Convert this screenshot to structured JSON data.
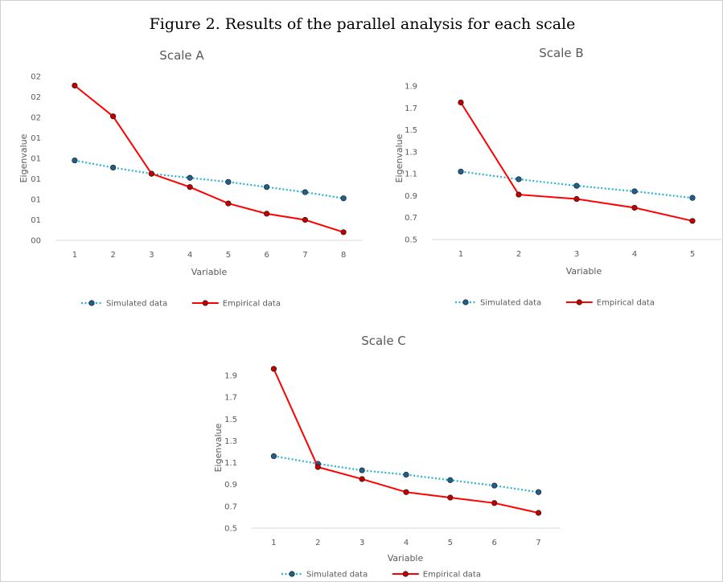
{
  "figure_title": "Figure 2. Results of the parallel analysis for each scale",
  "colors": {
    "simulated": "#2bb0d6",
    "simulated_marker": "#1f5f8b",
    "empirical": "#ff0000",
    "empirical_marker": "#c00000"
  },
  "chart_data": [
    {
      "type": "line",
      "title": "Scale A",
      "xlabel": "Variable",
      "ylabel": "Eigenvalue",
      "x": [
        1,
        2,
        3,
        4,
        5,
        6,
        7,
        8
      ],
      "ylim": [
        0,
        8
      ],
      "y_tick_labels": [
        "00",
        "01",
        "01",
        "01",
        "01",
        "01",
        "02",
        "02",
        "02"
      ],
      "series": [
        {
          "name": "Simulated data",
          "style": "dotted",
          "values": [
            3.9,
            3.55,
            3.25,
            3.05,
            2.85,
            2.6,
            2.35,
            2.05
          ]
        },
        {
          "name": "Empirical data",
          "style": "solid",
          "values": [
            7.55,
            6.05,
            3.25,
            2.6,
            1.8,
            1.3,
            1.0,
            0.4
          ]
        }
      ],
      "legend": "bottom"
    },
    {
      "type": "line",
      "title": "Scale B",
      "xlabel": "Variable",
      "ylabel": "Eigenvalue",
      "x": [
        1,
        2,
        3,
        4,
        5
      ],
      "ylim": [
        0.5,
        1.9
      ],
      "y_tick_labels": [
        "0.5",
        "0.7",
        "0.9",
        "1.1",
        "1.3",
        "1.5",
        "1.7",
        "1.9"
      ],
      "series": [
        {
          "name": "Simulated data",
          "style": "dotted",
          "values": [
            1.12,
            1.05,
            0.99,
            0.94,
            0.88
          ]
        },
        {
          "name": "Empirical data",
          "style": "solid",
          "values": [
            1.75,
            0.91,
            0.87,
            0.79,
            0.67
          ]
        }
      ],
      "legend": "bottom"
    },
    {
      "type": "line",
      "title": "Scale C",
      "xlabel": "Variable",
      "ylabel": "Eigenvalue",
      "x": [
        1,
        2,
        3,
        4,
        5,
        6,
        7
      ],
      "ylim": [
        0.5,
        1.9
      ],
      "y_tick_labels": [
        "0.5",
        "0.7",
        "0.9",
        "1.1",
        "1.3",
        "1.5",
        "1.7",
        "1.9"
      ],
      "series": [
        {
          "name": "Simulated data",
          "style": "dotted",
          "values": [
            1.16,
            1.09,
            1.03,
            0.99,
            0.94,
            0.89,
            0.83
          ]
        },
        {
          "name": "Empirical data",
          "style": "solid",
          "values": [
            1.96,
            1.06,
            0.95,
            0.83,
            0.78,
            0.73,
            0.64
          ]
        }
      ],
      "legend": "bottom"
    }
  ]
}
